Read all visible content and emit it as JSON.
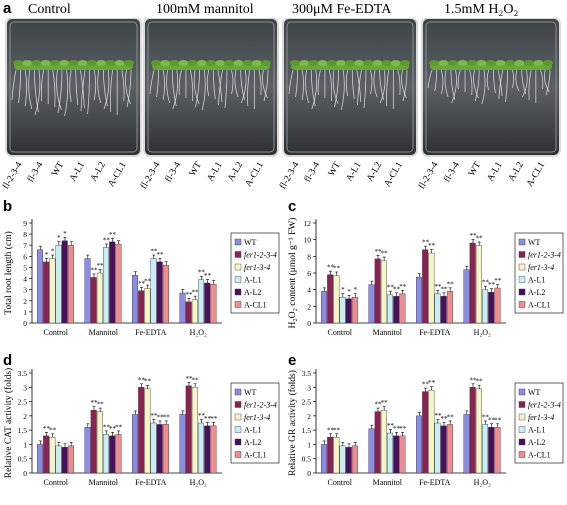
{
  "panel_letters": [
    "a",
    "b",
    "c",
    "d",
    "e"
  ],
  "photo": {
    "conditions": [
      "Control",
      "100mM mannitol",
      "300μM Fe-EDTA",
      "1.5mM H₂O₂"
    ],
    "line_labels": [
      "fl-2-3-4",
      "fl-3-4",
      "WT",
      "A-L1",
      "A-L2",
      "A-CL1"
    ]
  },
  "colors": {
    "WT": "#8c8ce6",
    "fer1-2-3-4": "#8b2252",
    "fer1-3-4": "#f5f5c8",
    "A-L1": "#c8eef5",
    "A-L2": "#4b0f5f",
    "A-CL1": "#f08c8c"
  },
  "chart_data": [
    {
      "panel": "b",
      "type": "bar",
      "ylabel": "Total root length (cm)",
      "ylim": [
        0,
        9
      ],
      "yticks": [
        0,
        1,
        2,
        3,
        4,
        5,
        6,
        7,
        8,
        9
      ],
      "categories": [
        "Control",
        "Mannitol",
        "Fe-EDTA",
        "H₂O₂"
      ],
      "legend_placement": "right",
      "series": [
        {
          "name": "WT",
          "values": [
            6.6,
            5.8,
            4.3,
            2.7
          ]
        },
        {
          "name": "fer1-2-3-4",
          "values": [
            5.5,
            4.1,
            2.9,
            1.9
          ]
        },
        {
          "name": "fer1-3-4",
          "values": [
            5.8,
            4.5,
            3.1,
            2.1
          ]
        },
        {
          "name": "A-L1",
          "values": [
            7.0,
            6.8,
            5.8,
            3.9
          ]
        },
        {
          "name": "A-L2",
          "values": [
            7.4,
            7.3,
            5.5,
            3.6
          ]
        },
        {
          "name": "A-CL1",
          "values": [
            7.0,
            7.1,
            5.2,
            3.5
          ]
        }
      ],
      "annotations": [
        [
          "",
          "*",
          "*",
          "*",
          "*",
          ""
        ],
        [
          "",
          "**",
          "**",
          "**",
          "**",
          ""
        ],
        [
          "",
          "**",
          "**",
          "**",
          "**",
          ""
        ],
        [
          "",
          "**",
          "**",
          "**",
          "**",
          ""
        ]
      ]
    },
    {
      "panel": "c",
      "type": "bar",
      "ylabel": "H₂O₂ content (μmol g⁻¹ FW)",
      "ylim": [
        0,
        12
      ],
      "yticks": [
        0,
        2,
        4,
        6,
        8,
        10,
        12
      ],
      "categories": [
        "Control",
        "Mannitol",
        "Fe-EDTA",
        "H₂O₂"
      ],
      "legend_placement": "right",
      "series": [
        {
          "name": "WT",
          "values": [
            3.8,
            4.6,
            5.5,
            6.4
          ]
        },
        {
          "name": "fer1-2-3-4",
          "values": [
            5.8,
            7.7,
            8.8,
            9.6
          ]
        },
        {
          "name": "fer1-3-4",
          "values": [
            5.7,
            7.5,
            8.4,
            9.3
          ]
        },
        {
          "name": "A-L1",
          "values": [
            3.1,
            3.4,
            3.5,
            4.0
          ]
        },
        {
          "name": "A-L2",
          "values": [
            2.9,
            3.2,
            3.2,
            3.7
          ]
        },
        {
          "name": "A-CL1",
          "values": [
            3.1,
            3.5,
            3.8,
            4.2
          ]
        }
      ],
      "annotations": [
        [
          "",
          "**",
          "**",
          "*",
          "*",
          "*"
        ],
        [
          "",
          "**",
          "**",
          "**",
          "**",
          "**"
        ],
        [
          "",
          "**",
          "**",
          "**",
          "**",
          "**"
        ],
        [
          "",
          "**",
          "**",
          "**",
          "**",
          "**"
        ]
      ]
    },
    {
      "panel": "d",
      "type": "bar",
      "ylabel": "Relative CAT activity (folds)",
      "ylim": [
        0,
        3.5
      ],
      "yticks": [
        0,
        0.5,
        1,
        1.5,
        2,
        2.5,
        3,
        3.5
      ],
      "categories": [
        "Control",
        "Mannitol",
        "Fe-EDTA",
        "H₂O₂"
      ],
      "legend_placement": "right",
      "series": [
        {
          "name": "WT",
          "values": [
            1.0,
            1.6,
            2.05,
            2.05
          ]
        },
        {
          "name": "fer1-2-3-4",
          "values": [
            1.3,
            2.2,
            3.0,
            3.05
          ]
        },
        {
          "name": "fer1-3-4",
          "values": [
            1.25,
            2.15,
            2.95,
            3.0
          ]
        },
        {
          "name": "A-L1",
          "values": [
            0.95,
            1.35,
            1.75,
            1.75
          ]
        },
        {
          "name": "A-L2",
          "values": [
            0.9,
            1.3,
            1.7,
            1.65
          ]
        },
        {
          "name": "A-CL1",
          "values": [
            0.95,
            1.35,
            1.7,
            1.65
          ]
        }
      ],
      "annotations": [
        [
          "",
          "**",
          "**",
          "",
          "",
          ""
        ],
        [
          "",
          "**",
          "**",
          "**",
          "**",
          "**"
        ],
        [
          "",
          "**",
          "**",
          "**",
          "**",
          "**"
        ],
        [
          "",
          "**",
          "**",
          "**",
          "**",
          "**"
        ]
      ]
    },
    {
      "panel": "e",
      "type": "bar",
      "ylabel": "Relative GR activity (folds)",
      "ylim": [
        0,
        3.5
      ],
      "yticks": [
        0,
        0.5,
        1,
        1.5,
        2,
        2.5,
        3,
        3.5
      ],
      "categories": [
        "Control",
        "Mannitol",
        "Fe-EDTA",
        "H₂O₂"
      ],
      "legend_placement": "right",
      "series": [
        {
          "name": "WT",
          "values": [
            1.0,
            1.55,
            2.0,
            2.05
          ]
        },
        {
          "name": "fer1-2-3-4",
          "values": [
            1.25,
            2.15,
            2.85,
            3.0
          ]
        },
        {
          "name": "fer1-3-4",
          "values": [
            1.25,
            2.2,
            2.9,
            2.95
          ]
        },
        {
          "name": "A-L1",
          "values": [
            0.95,
            1.4,
            1.75,
            1.7
          ]
        },
        {
          "name": "A-L2",
          "values": [
            0.9,
            1.3,
            1.65,
            1.6
          ]
        },
        {
          "name": "A-CL1",
          "values": [
            0.95,
            1.3,
            1.7,
            1.6
          ]
        }
      ],
      "annotations": [
        [
          "",
          "**",
          "**",
          "",
          "",
          ""
        ],
        [
          "",
          "**",
          "**",
          "**",
          "**",
          "**"
        ],
        [
          "",
          "**",
          "**",
          "**",
          "**",
          "**"
        ],
        [
          "",
          "**",
          "**",
          "**",
          "**",
          "**"
        ]
      ]
    }
  ]
}
